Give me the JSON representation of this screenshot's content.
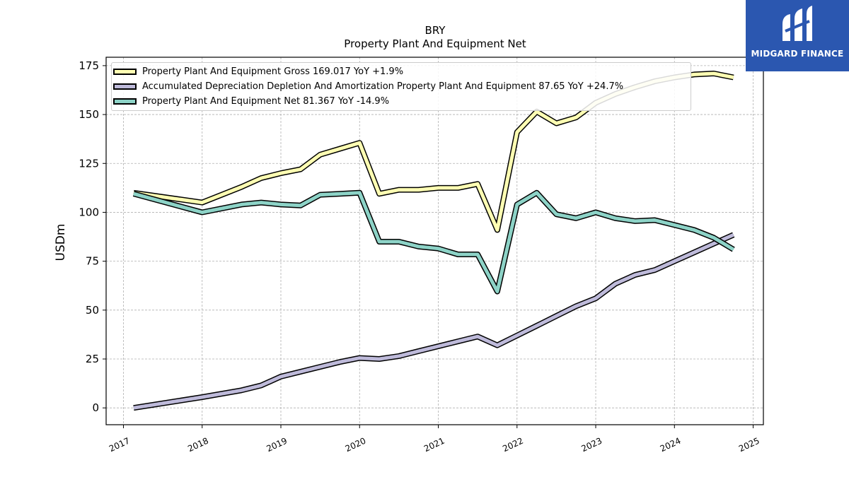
{
  "brand": {
    "name": "MIDGARD FINANCE",
    "color": "#2b57b0"
  },
  "chart_data": {
    "type": "line",
    "title": "BRY",
    "subtitle": "Property Plant And Equipment Net",
    "xlabel": "",
    "ylabel": "USDm",
    "xlim": [
      2016.78,
      2025.13
    ],
    "ylim": [
      -8.6,
      179.3
    ],
    "x_ticks": [
      2017,
      2018,
      2019,
      2020,
      2021,
      2022,
      2023,
      2024,
      2025
    ],
    "y_ticks": [
      0,
      25,
      50,
      75,
      100,
      125,
      150,
      175
    ],
    "grid": true,
    "legend_position": "top-left",
    "x": [
      2017.13,
      2018.0,
      2018.5,
      2018.75,
      2019.0,
      2019.25,
      2019.5,
      2019.75,
      2020.0,
      2020.25,
      2020.5,
      2020.75,
      2021.0,
      2021.25,
      2021.5,
      2021.75,
      2022.0,
      2022.25,
      2022.5,
      2022.75,
      2023.0,
      2023.25,
      2023.5,
      2023.75,
      2024.0,
      2024.25,
      2024.5,
      2024.75
    ],
    "series": [
      {
        "name": "Property Plant And Equipment Gross",
        "legend": "Property Plant And Equipment Gross  169.017 YoY +1.9%",
        "color": "#ffffb3",
        "values": [
          110.0,
          105.0,
          113.0,
          117.5,
          120.0,
          122.0,
          129.5,
          132.5,
          135.5,
          109.5,
          111.5,
          111.5,
          112.5,
          112.5,
          114.5,
          91.0,
          141.0,
          151.5,
          145.5,
          148.5,
          156.0,
          160.5,
          164.0,
          167.0,
          169.0,
          170.5,
          171.0,
          169.0
        ]
      },
      {
        "name": "Accumulated Depreciation Depletion And Amortization Property Plant And Equipment",
        "legend": "Accumulated Depreciation Depletion And Amortization Property Plant And Equipment  87.65 YoY +24.7%",
        "color": "#bebada",
        "values": [
          0.0,
          5.5,
          9.0,
          11.5,
          16.0,
          18.5,
          21.0,
          23.5,
          25.5,
          25.0,
          26.5,
          29.0,
          31.5,
          34.0,
          36.5,
          32.0,
          37.0,
          42.0,
          47.0,
          52.0,
          56.0,
          63.5,
          68.0,
          70.5,
          75.0,
          79.5,
          84.0,
          88.5
        ]
      },
      {
        "name": "Property Plant And Equipment Net",
        "legend": "Property Plant And Equipment Net  81.367 YoY -14.9%",
        "color": "#8dd3c7",
        "values": [
          109.5,
          100.0,
          104.0,
          105.0,
          104.0,
          103.5,
          109.0,
          109.5,
          110.0,
          85.0,
          85.0,
          82.5,
          81.5,
          78.5,
          78.5,
          59.5,
          104.0,
          110.0,
          99.0,
          97.0,
          100.0,
          97.0,
          95.5,
          96.0,
          93.5,
          91.0,
          87.0,
          81.0
        ]
      }
    ]
  }
}
